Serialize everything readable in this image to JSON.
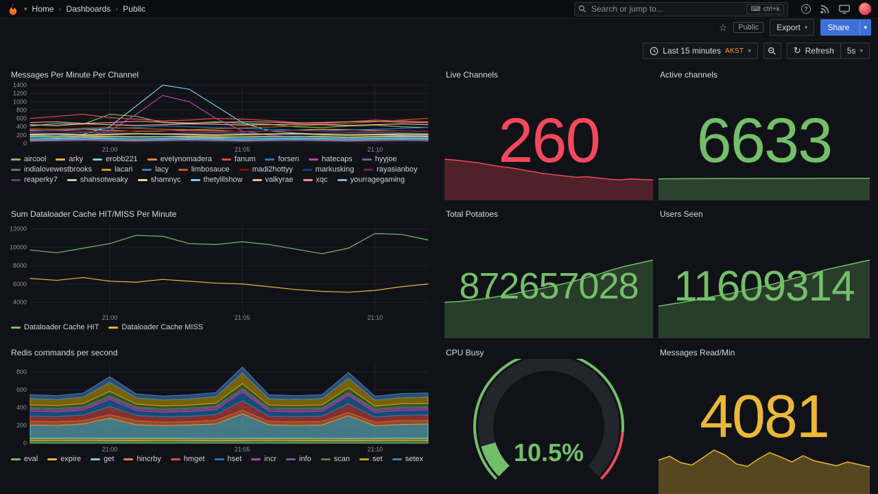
{
  "palette": [
    "#73BF69",
    "#EAB839",
    "#6ED0E0",
    "#EF843C",
    "#E24D42",
    "#1F78C1",
    "#BA43A9",
    "#705DA0",
    "#508642",
    "#CCA300",
    "#447EBC",
    "#C15C17",
    "#890F02",
    "#0A437C",
    "#6D1F62",
    "#584477",
    "#B7DBAB",
    "#F4D598",
    "#70DBED",
    "#F9BA8F",
    "#F29191",
    "#82B5D8"
  ],
  "nav": {
    "breadcrumb": [
      "Home",
      "Dashboards",
      "Public"
    ],
    "search_placeholder": "Search or jump to...",
    "shortcut_label": "ctrl+k"
  },
  "subnav": {
    "visibility_badge": "Public",
    "export_label": "Export",
    "share_label": "Share"
  },
  "toolbar": {
    "time_label": "Last 15 minutes",
    "timezone_label": "AKST",
    "refresh_label": "Refresh",
    "interval_label": "5s"
  },
  "chart_data": [
    {
      "type": "line",
      "title": "Messages Per Minute Per Channel",
      "ylim": [
        0,
        1400
      ],
      "yticks": [
        [
          0,
          "0"
        ],
        [
          200,
          "200"
        ],
        [
          400,
          "400"
        ],
        [
          600,
          "600"
        ],
        [
          800,
          "800"
        ],
        [
          1000,
          "1000"
        ],
        [
          1200,
          "1200"
        ],
        [
          1400,
          "1400"
        ]
      ],
      "xticks": [
        [
          0.2,
          "21:00"
        ],
        [
          0.533,
          "21:05"
        ],
        [
          0.867,
          "21:10"
        ]
      ],
      "series": [
        {
          "name": "aircool",
          "values": [
            420,
            480,
            460,
            700,
            650,
            500,
            480,
            520,
            480,
            460,
            400,
            380,
            420,
            440,
            400,
            380
          ]
        },
        {
          "name": "arky",
          "values": [
            320,
            300,
            340,
            310,
            290,
            300,
            320,
            310,
            280,
            300,
            320,
            340,
            330,
            310,
            300,
            290
          ]
        },
        {
          "name": "erobb221",
          "values": [
            200,
            180,
            220,
            400,
            900,
            1400,
            1300,
            900,
            500,
            300,
            250,
            220,
            200,
            210,
            190,
            180
          ]
        },
        {
          "name": "evelynomadera",
          "values": [
            150,
            160,
            140,
            150,
            170,
            160,
            150,
            140,
            150,
            160,
            170,
            150,
            140,
            150,
            160,
            150
          ]
        },
        {
          "name": "fanum",
          "values": [
            600,
            650,
            700,
            620,
            580,
            540,
            560,
            600,
            580,
            550,
            500,
            480,
            520,
            560,
            540,
            520
          ]
        },
        {
          "name": "forsen",
          "values": [
            300,
            320,
            340,
            360,
            380,
            420,
            400,
            380,
            360,
            340,
            320,
            300,
            320,
            340,
            360,
            380
          ]
        },
        {
          "name": "hatecaps",
          "values": [
            100,
            120,
            150,
            300,
            700,
            1150,
            1000,
            600,
            300,
            200,
            150,
            120,
            110,
            100,
            120,
            110
          ]
        },
        {
          "name": "hyyjoe",
          "values": [
            250,
            240,
            260,
            250,
            240,
            230,
            250,
            260,
            240,
            230,
            220,
            240,
            250,
            260,
            250,
            240
          ]
        },
        {
          "name": "indialovewestbrooks",
          "values": [
            180,
            170,
            190,
            180,
            170,
            160,
            180,
            190,
            180,
            170,
            160,
            180,
            190,
            180,
            170,
            160
          ]
        },
        {
          "name": "lacari",
          "values": [
            220,
            230,
            210,
            220,
            240,
            230,
            220,
            210,
            220,
            230,
            240,
            220,
            210,
            220,
            230,
            220
          ]
        },
        {
          "name": "lacy",
          "values": [
            90,
            100,
            110,
            100,
            90,
            100,
            110,
            100,
            90,
            100,
            110,
            100,
            90,
            100,
            110,
            100
          ]
        },
        {
          "name": "limbosauce",
          "values": [
            350,
            340,
            360,
            380,
            360,
            340,
            330,
            350,
            370,
            390,
            420,
            450,
            480,
            520,
            560,
            600
          ]
        },
        {
          "name": "madi2hottyy",
          "values": [
            60,
            70,
            80,
            70,
            60,
            70,
            80,
            70,
            60,
            70,
            80,
            70,
            60,
            70,
            80,
            70
          ]
        },
        {
          "name": "markusking",
          "values": [
            130,
            140,
            120,
            130,
            150,
            140,
            130,
            120,
            130,
            140,
            150,
            130,
            120,
            130,
            140,
            130
          ]
        },
        {
          "name": "rayasianboy",
          "values": [
            280,
            300,
            290,
            280,
            300,
            310,
            290,
            280,
            290,
            300,
            310,
            290,
            280,
            290,
            300,
            290
          ]
        },
        {
          "name": "reaperky7",
          "values": [
            40,
            50,
            60,
            50,
            40,
            50,
            60,
            50,
            40,
            50,
            60,
            50,
            40,
            50,
            60,
            50
          ]
        },
        {
          "name": "shahsotweaky",
          "values": [
            160,
            150,
            170,
            160,
            150,
            160,
            170,
            160,
            150,
            160,
            170,
            160,
            150,
            160,
            170,
            160
          ]
        },
        {
          "name": "shamnyc",
          "values": [
            210,
            220,
            200,
            210,
            230,
            220,
            210,
            200,
            210,
            220,
            230,
            210,
            200,
            210,
            220,
            210
          ]
        },
        {
          "name": "thetylilshow",
          "values": [
            110,
            120,
            130,
            120,
            110,
            120,
            130,
            120,
            110,
            120,
            130,
            120,
            110,
            120,
            130,
            120
          ]
        },
        {
          "name": "valkyrae",
          "values": [
            450,
            430,
            470,
            450,
            430,
            450,
            470,
            460,
            440,
            450,
            460,
            450,
            430,
            450,
            470,
            450
          ]
        },
        {
          "name": "xqc",
          "values": [
            500,
            520,
            480,
            500,
            530,
            510,
            490,
            500,
            520,
            510,
            490,
            500,
            520,
            530,
            510,
            500
          ]
        },
        {
          "name": "yourragegaming",
          "values": [
            70,
            80,
            90,
            80,
            70,
            80,
            90,
            80,
            70,
            80,
            90,
            80,
            70,
            80,
            90,
            80
          ]
        }
      ]
    },
    {
      "type": "stat",
      "title": "Live Channels",
      "value": "260",
      "color": "#F2495C",
      "sparkline": {
        "values": [
          295,
          292,
          288,
          284,
          278,
          272,
          268,
          262,
          256,
          250,
          246,
          242,
          238,
          240,
          236,
          232,
          230,
          233,
          231,
          230
        ],
        "color": "#F2495C",
        "fill_opacity": 0.28,
        "curve_frac": 0.55
      }
    },
    {
      "type": "stat",
      "title": "Active channels",
      "value": "6633",
      "color": "#73BF69",
      "sparkline": {
        "values": [
          6480,
          6520,
          6560,
          6540,
          6580,
          6600,
          6590,
          6610,
          6620,
          6600,
          6615,
          6625,
          6620,
          6630,
          6628,
          6633
        ],
        "color": "#73BF69",
        "fill_opacity": 0.28,
        "min": 0,
        "curve_frac": 1
      }
    },
    {
      "type": "line",
      "title": "Sum Dataloader Cache HIT/MISS Per Minute",
      "ylim": [
        3000,
        12500
      ],
      "yticks": [
        [
          4000,
          "4000"
        ],
        [
          6000,
          "6000"
        ],
        [
          8000,
          "8000"
        ],
        [
          10000,
          "10000"
        ],
        [
          12000,
          "12000"
        ]
      ],
      "xticks": [
        [
          0.2,
          "21:00"
        ],
        [
          0.533,
          "21:05"
        ],
        [
          0.867,
          "21:10"
        ]
      ],
      "series": [
        {
          "name": "Dataloader Cache HIT",
          "color": "#73BF69",
          "values": [
            9700,
            9400,
            9900,
            10400,
            11300,
            11200,
            10400,
            10300,
            10600,
            10300,
            9800,
            9300,
            9900,
            11500,
            11400,
            10800
          ]
        },
        {
          "name": "Dataloader Cache MISS",
          "color": "#EAB839",
          "values": [
            6600,
            6400,
            6700,
            6300,
            6200,
            6500,
            6300,
            6100,
            6000,
            5700,
            5400,
            5200,
            5100,
            5300,
            5700,
            6000
          ]
        }
      ]
    },
    {
      "type": "stat",
      "title": "Total Potatoes",
      "value": "872657028",
      "color": "#73BF69",
      "sparkline": {
        "values": [
          45,
          46,
          48,
          50,
          53,
          56,
          60,
          63,
          67,
          71,
          76,
          81,
          87,
          92,
          96,
          100
        ],
        "color": "#73BF69",
        "fill_opacity": 0.25,
        "min": 0,
        "curve_frac": 1
      }
    },
    {
      "type": "stat",
      "title": "Users Seen",
      "value": "11609314",
      "color": "#73BF69",
      "sparkline": {
        "values": [
          40,
          43,
          46,
          49,
          53,
          56,
          60,
          64,
          68,
          73,
          78,
          83,
          88,
          92,
          96,
          100
        ],
        "color": "#73BF69",
        "fill_opacity": 0.25,
        "min": 0,
        "curve_frac": 1
      }
    },
    {
      "type": "area",
      "stacked": true,
      "title": "Redis commands per second",
      "ylim": [
        0,
        900
      ],
      "yticks": [
        [
          0,
          "0"
        ],
        [
          200,
          "200"
        ],
        [
          400,
          "400"
        ],
        [
          600,
          "600"
        ],
        [
          800,
          "800"
        ]
      ],
      "xticks": [
        [
          0.2,
          "21:00"
        ],
        [
          0.533,
          "21:05"
        ],
        [
          0.867,
          "21:10"
        ]
      ],
      "series": [
        {
          "name": "eval",
          "values": [
            30,
            31,
            34,
            30,
            29,
            32,
            30,
            28,
            30,
            32,
            30,
            29,
            28,
            30,
            32,
            30
          ]
        },
        {
          "name": "expire",
          "values": [
            25,
            26,
            24,
            25,
            27,
            25,
            24,
            26,
            25,
            24,
            26,
            25,
            24,
            25,
            26,
            25
          ]
        },
        {
          "name": "get",
          "values": [
            150,
            142,
            158,
            225,
            152,
            140,
            150,
            162,
            275,
            150,
            142,
            150,
            255,
            140,
            152,
            160
          ]
        },
        {
          "name": "hincrby",
          "values": [
            40,
            42,
            38,
            40,
            44,
            40,
            38,
            42,
            40,
            38,
            42,
            40,
            38,
            40,
            44,
            40
          ]
        },
        {
          "name": "hmget",
          "values": [
            60,
            58,
            62,
            92,
            60,
            58,
            60,
            62,
            108,
            60,
            58,
            60,
            98,
            58,
            60,
            62
          ]
        },
        {
          "name": "hset",
          "values": [
            55,
            53,
            57,
            82,
            55,
            53,
            55,
            57,
            98,
            55,
            53,
            55,
            92,
            53,
            55,
            57
          ]
        },
        {
          "name": "incr",
          "values": [
            20,
            21,
            19,
            20,
            22,
            20,
            19,
            21,
            20,
            19,
            21,
            20,
            19,
            20,
            22,
            20
          ]
        },
        {
          "name": "info",
          "values": [
            15,
            15,
            16,
            15,
            14,
            15,
            16,
            15,
            14,
            15,
            16,
            15,
            14,
            15,
            16,
            15
          ]
        },
        {
          "name": "scan",
          "values": [
            35,
            34,
            36,
            52,
            35,
            34,
            35,
            36,
            58,
            35,
            34,
            35,
            54,
            34,
            35,
            36
          ]
        },
        {
          "name": "set",
          "values": [
            70,
            68,
            72,
            102,
            70,
            68,
            70,
            72,
            118,
            70,
            68,
            70,
            108,
            68,
            70,
            72
          ]
        },
        {
          "name": "setex",
          "values": [
            45,
            44,
            46,
            62,
            45,
            44,
            45,
            46,
            68,
            45,
            44,
            45,
            64,
            44,
            45,
            46
          ]
        }
      ]
    },
    {
      "type": "gauge",
      "title": "CPU Busy",
      "value": 10.5,
      "display": "10.5%",
      "min": 0,
      "max": 100,
      "value_color": "#73BF69",
      "thresholds": [
        {
          "from": 0,
          "to": 85,
          "color": "#73BF69"
        },
        {
          "from": 85,
          "to": 100,
          "color": "#F2495C"
        }
      ]
    },
    {
      "type": "stat",
      "title": "Messages Read/Min",
      "value": "4081",
      "color": "#EAB839",
      "sparkline": {
        "values": [
          52,
          58,
          48,
          44,
          56,
          68,
          60,
          46,
          42,
          54,
          64,
          57,
          49,
          59,
          51,
          47,
          43,
          49,
          45,
          41
        ],
        "color": "#EAB839",
        "fill_opacity": 0.32,
        "min": 0,
        "curve_frac": 1
      }
    }
  ]
}
